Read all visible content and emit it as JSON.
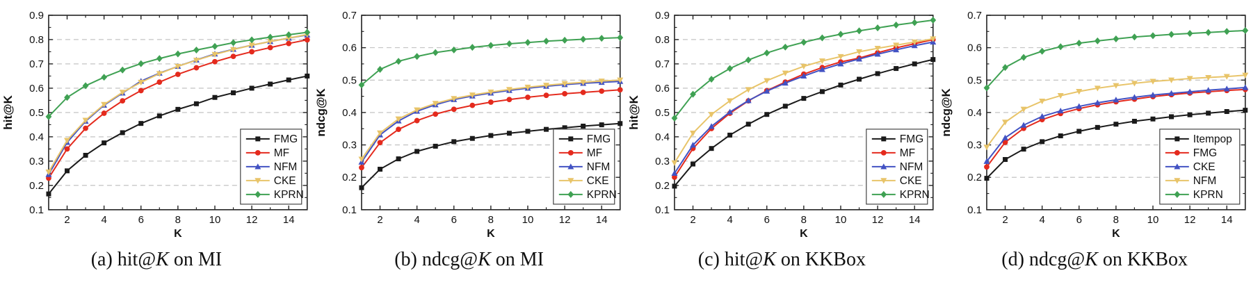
{
  "figure": {
    "background": "#ffffff",
    "grid_color": "#bcbcbc",
    "axis_color": "#222222"
  },
  "chart_data": [
    {
      "type": "line",
      "caption": {
        "prefix": "(a) hit@",
        "k": "K",
        "suffix": " on MI"
      },
      "xlabel": "K",
      "ylabel": "hit@K",
      "xlim": [
        1,
        15
      ],
      "ylim": [
        0.1,
        0.9
      ],
      "xticks": [
        2,
        4,
        6,
        8,
        10,
        12,
        14
      ],
      "yticks": [
        0.1,
        0.2,
        0.3,
        0.4,
        0.5,
        0.6,
        0.7,
        0.8,
        0.9
      ],
      "grid": "horizontal-dashed",
      "legend_position": "lower right",
      "x": [
        1,
        2,
        3,
        4,
        5,
        6,
        7,
        8,
        9,
        10,
        11,
        12,
        13,
        14,
        15
      ],
      "series": [
        {
          "name": "FMG",
          "color": "#1a1a1a",
          "marker": "square",
          "values": [
            0.165,
            0.26,
            0.324,
            0.375,
            0.417,
            0.455,
            0.486,
            0.513,
            0.536,
            0.562,
            0.581,
            0.6,
            0.617,
            0.634,
            0.65
          ]
        },
        {
          "name": "MF",
          "color": "#e42a1d",
          "marker": "circle",
          "values": [
            0.23,
            0.35,
            0.435,
            0.497,
            0.548,
            0.59,
            0.625,
            0.657,
            0.684,
            0.709,
            0.731,
            0.75,
            0.767,
            0.784,
            0.799
          ]
        },
        {
          "name": "NFM",
          "color": "#4252c3",
          "marker": "triangle-up",
          "values": [
            0.245,
            0.377,
            0.464,
            0.53,
            0.58,
            0.629,
            0.662,
            0.69,
            0.716,
            0.741,
            0.76,
            0.777,
            0.792,
            0.806,
            0.819
          ]
        },
        {
          "name": "CKE",
          "color": "#e8c469",
          "marker": "triangle-down",
          "values": [
            0.255,
            0.385,
            0.468,
            0.533,
            0.583,
            0.624,
            0.66,
            0.69,
            0.715,
            0.739,
            0.759,
            0.777,
            0.792,
            0.806,
            0.821
          ]
        },
        {
          "name": "KPRN",
          "color": "#3fa153",
          "marker": "diamond",
          "values": [
            0.483,
            0.562,
            0.61,
            0.645,
            0.675,
            0.701,
            0.722,
            0.741,
            0.757,
            0.772,
            0.787,
            0.799,
            0.81,
            0.82,
            0.83
          ]
        }
      ]
    },
    {
      "type": "line",
      "caption": {
        "prefix": "(b) ndcg@",
        "k": "K",
        "suffix": " on MI"
      },
      "xlabel": "K",
      "ylabel": "ndcg@K",
      "xlim": [
        1,
        15
      ],
      "ylim": [
        0.1,
        0.7
      ],
      "xticks": [
        2,
        4,
        6,
        8,
        10,
        12,
        14
      ],
      "yticks": [
        0.1,
        0.2,
        0.3,
        0.4,
        0.5,
        0.6,
        0.7
      ],
      "grid": "horizontal-dashed",
      "legend_position": "lower right",
      "x": [
        1,
        2,
        3,
        4,
        5,
        6,
        7,
        8,
        9,
        10,
        11,
        12,
        13,
        14,
        15
      ],
      "series": [
        {
          "name": "FMG",
          "color": "#1a1a1a",
          "marker": "square",
          "values": [
            0.168,
            0.225,
            0.257,
            0.28,
            0.296,
            0.31,
            0.32,
            0.329,
            0.336,
            0.342,
            0.348,
            0.353,
            0.358,
            0.362,
            0.366
          ]
        },
        {
          "name": "MF",
          "color": "#e42a1d",
          "marker": "circle",
          "values": [
            0.23,
            0.307,
            0.348,
            0.375,
            0.395,
            0.41,
            0.422,
            0.432,
            0.44,
            0.447,
            0.453,
            0.458,
            0.462,
            0.466,
            0.47
          ]
        },
        {
          "name": "NFM",
          "color": "#4252c3",
          "marker": "triangle-up",
          "values": [
            0.247,
            0.331,
            0.374,
            0.404,
            0.424,
            0.44,
            0.451,
            0.46,
            0.468,
            0.475,
            0.481,
            0.486,
            0.49,
            0.493,
            0.496
          ]
        },
        {
          "name": "CKE",
          "color": "#e8c469",
          "marker": "triangle-down",
          "values": [
            0.256,
            0.337,
            0.38,
            0.408,
            0.428,
            0.443,
            0.454,
            0.463,
            0.471,
            0.478,
            0.484,
            0.489,
            0.493,
            0.497,
            0.5
          ]
        },
        {
          "name": "KPRN",
          "color": "#3fa153",
          "marker": "diamond",
          "values": [
            0.485,
            0.533,
            0.558,
            0.573,
            0.585,
            0.593,
            0.601,
            0.607,
            0.612,
            0.616,
            0.62,
            0.623,
            0.626,
            0.629,
            0.631
          ]
        }
      ]
    },
    {
      "type": "line",
      "caption": {
        "prefix": "(c) hit@",
        "k": "K",
        "suffix": " on KKBox"
      },
      "xlabel": "K",
      "ylabel": "hit@K",
      "xlim": [
        1,
        15
      ],
      "ylim": [
        0.1,
        0.9
      ],
      "xticks": [
        2,
        4,
        6,
        8,
        10,
        12,
        14
      ],
      "yticks": [
        0.1,
        0.2,
        0.3,
        0.4,
        0.5,
        0.6,
        0.7,
        0.8,
        0.9
      ],
      "grid": "horizontal-dashed",
      "legend_position": "lower right",
      "x": [
        1,
        2,
        3,
        4,
        5,
        6,
        7,
        8,
        9,
        10,
        11,
        12,
        13,
        14,
        15
      ],
      "series": [
        {
          "name": "FMG",
          "color": "#1a1a1a",
          "marker": "square",
          "values": [
            0.197,
            0.288,
            0.352,
            0.407,
            0.452,
            0.492,
            0.526,
            0.558,
            0.586,
            0.613,
            0.637,
            0.66,
            0.681,
            0.7,
            0.718
          ]
        },
        {
          "name": "MF",
          "color": "#e42a1d",
          "marker": "circle",
          "values": [
            0.234,
            0.352,
            0.434,
            0.497,
            0.548,
            0.59,
            0.625,
            0.658,
            0.685,
            0.708,
            0.724,
            0.746,
            0.766,
            0.783,
            0.8
          ]
        },
        {
          "name": "NFM",
          "color": "#4252c3",
          "marker": "triangle-up",
          "values": [
            0.25,
            0.366,
            0.443,
            0.502,
            0.549,
            0.588,
            0.621,
            0.65,
            0.677,
            0.7,
            0.72,
            0.74,
            0.758,
            0.775,
            0.79
          ]
        },
        {
          "name": "CKE",
          "color": "#e8c469",
          "marker": "triangle-down",
          "values": [
            0.293,
            0.415,
            0.492,
            0.548,
            0.594,
            0.631,
            0.662,
            0.69,
            0.712,
            0.73,
            0.75,
            0.764,
            0.777,
            0.79,
            0.803
          ]
        },
        {
          "name": "KPRN",
          "color": "#3fa153",
          "marker": "diamond",
          "values": [
            0.477,
            0.575,
            0.637,
            0.681,
            0.716,
            0.745,
            0.769,
            0.789,
            0.807,
            0.822,
            0.836,
            0.848,
            0.86,
            0.87,
            0.88
          ]
        }
      ]
    },
    {
      "type": "line",
      "caption": {
        "prefix": "(d) ndcg@",
        "k": "K",
        "suffix": " on KKBox"
      },
      "xlabel": "K",
      "ylabel": "ndcg@K",
      "xlim": [
        1,
        15
      ],
      "ylim": [
        0.1,
        0.7
      ],
      "xticks": [
        2,
        4,
        6,
        8,
        10,
        12,
        14
      ],
      "yticks": [
        0.1,
        0.2,
        0.3,
        0.4,
        0.5,
        0.6,
        0.7
      ],
      "grid": "horizontal-dashed",
      "legend_position": "lower right",
      "x": [
        1,
        2,
        3,
        4,
        5,
        6,
        7,
        8,
        9,
        10,
        11,
        12,
        13,
        14,
        15
      ],
      "series": [
        {
          "name": "Itempop",
          "color": "#1a1a1a",
          "marker": "square",
          "values": [
            0.197,
            0.255,
            0.287,
            0.31,
            0.328,
            0.342,
            0.354,
            0.364,
            0.373,
            0.38,
            0.387,
            0.393,
            0.398,
            0.403,
            0.407
          ]
        },
        {
          "name": "FMG",
          "color": "#e42a1d",
          "marker": "circle",
          "values": [
            0.232,
            0.308,
            0.351,
            0.378,
            0.397,
            0.412,
            0.424,
            0.433,
            0.441,
            0.449,
            0.455,
            0.46,
            0.464,
            0.468,
            0.471
          ]
        },
        {
          "name": "CKE",
          "color": "#4252c3",
          "marker": "triangle-up",
          "values": [
            0.249,
            0.322,
            0.361,
            0.388,
            0.405,
            0.419,
            0.43,
            0.439,
            0.447,
            0.454,
            0.459,
            0.464,
            0.469,
            0.473,
            0.477
          ]
        },
        {
          "name": "NFM",
          "color": "#e8c469",
          "marker": "triangle-down",
          "values": [
            0.293,
            0.37,
            0.41,
            0.435,
            0.452,
            0.465,
            0.475,
            0.483,
            0.49,
            0.496,
            0.5,
            0.505,
            0.508,
            0.511,
            0.515
          ]
        },
        {
          "name": "KPRN",
          "color": "#3fa153",
          "marker": "diamond",
          "values": [
            0.476,
            0.539,
            0.57,
            0.589,
            0.603,
            0.614,
            0.621,
            0.627,
            0.633,
            0.637,
            0.641,
            0.644,
            0.647,
            0.65,
            0.653
          ]
        }
      ]
    }
  ]
}
